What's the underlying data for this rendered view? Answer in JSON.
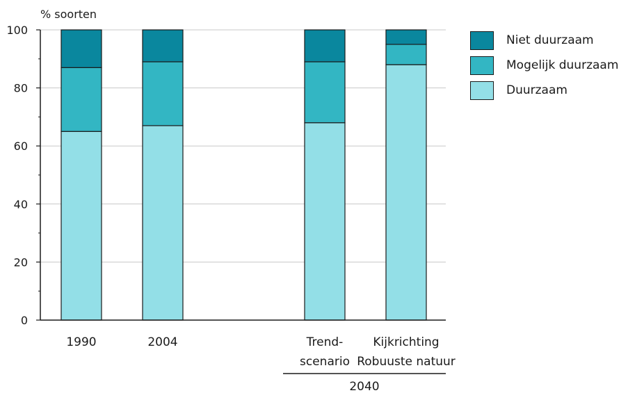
{
  "chart_data": {
    "type": "bar",
    "stacked": true,
    "ylabel": "% soorten",
    "ylim": [
      0,
      100
    ],
    "yticks": [
      0,
      20,
      40,
      60,
      80,
      100
    ],
    "grid": true,
    "legend_position": "right",
    "categories": [
      {
        "line1": "1990",
        "line2": ""
      },
      {
        "line1": "2004",
        "line2": ""
      },
      {
        "line1": "Trend-",
        "line2": "scenario"
      },
      {
        "line1": "Kijkrichting",
        "line2": "Robuuste natuur"
      }
    ],
    "group_label": "2040",
    "series": [
      {
        "name": "Duurzaam",
        "color": "#93dfe7",
        "values": [
          65,
          67,
          68,
          88
        ]
      },
      {
        "name": "Mogelijk duurzaam",
        "color": "#33b6c3",
        "values": [
          22,
          22,
          21,
          7
        ]
      },
      {
        "name": "Niet duurzaam",
        "color": "#0a879e",
        "values": [
          13,
          11,
          11,
          5
        ]
      }
    ]
  }
}
